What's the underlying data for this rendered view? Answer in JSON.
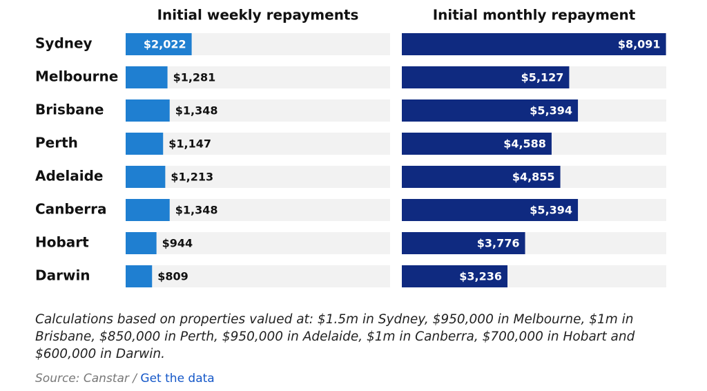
{
  "chart_data": {
    "type": "bar",
    "orientation": "horizontal",
    "categories": [
      "Sydney",
      "Melbourne",
      "Brisbane",
      "Perth",
      "Adelaide",
      "Canberra",
      "Hobart",
      "Darwin"
    ],
    "xlim": [
      0,
      8100
    ],
    "series": [
      {
        "name": "Initial weekly repayments",
        "color": "#1f7fd1",
        "values": [
          2022,
          1281,
          1348,
          1147,
          1213,
          1348,
          944,
          809
        ],
        "value_labels": [
          "$2,022",
          "$1,281",
          "$1,348",
          "$1,147",
          "$1,213",
          "$1,348",
          "$944",
          "$809"
        ]
      },
      {
        "name": "Initial monthly repayment",
        "color": "#0f2a80",
        "values": [
          8091,
          5127,
          5394,
          4588,
          4855,
          5394,
          3776,
          3236
        ],
        "value_labels": [
          "$8,091",
          "$5,127",
          "$5,394",
          "$4,588",
          "$4,855",
          "$5,394",
          "$3,776",
          "$3,236"
        ]
      }
    ],
    "note": "Calculations based on properties valued at: $1.5m in Sydney, $950,000 in Melbourne, $1m in Brisbane, $850,000 in Perth, $950,000 in Adelaide, $1m in Canberra, $700,000 in Hobart and $600,000 in Darwin.",
    "source": "Source: Canstar /",
    "source_link": "Get the data"
  }
}
